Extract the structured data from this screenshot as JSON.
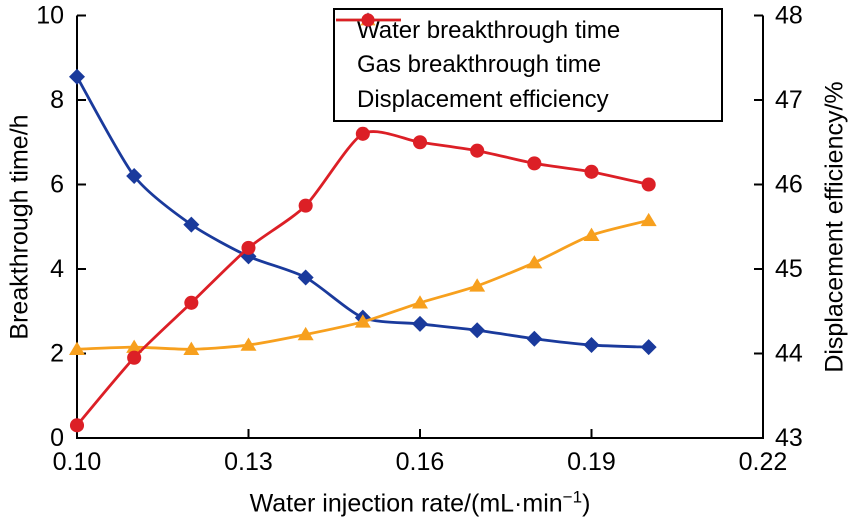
{
  "chart_data": {
    "type": "line",
    "title": "",
    "x": [
      0.1,
      0.11,
      0.12,
      0.13,
      0.14,
      0.15,
      0.16,
      0.17,
      0.18,
      0.19,
      0.2
    ],
    "xlim": [
      0.1,
      0.22
    ],
    "x_ticks": [
      "0.10",
      "0.13",
      "0.16",
      "0.19",
      "0.22"
    ],
    "xlabel_prefix": "Water injection rate/(mL·min",
    "xlabel_sup": "−1",
    "xlabel_suffix": ")",
    "left_axis": {
      "label": "Breakthrough time/h",
      "ticks": [
        "0",
        "2",
        "4",
        "6",
        "8",
        "10"
      ],
      "lim": [
        0,
        10
      ]
    },
    "right_axis": {
      "label": "Displacement efficiency/%",
      "ticks": [
        "43",
        "44",
        "45",
        "46",
        "47",
        "48"
      ],
      "lim": [
        43,
        48
      ]
    },
    "grid": false,
    "legend_position": "top-center-inside",
    "series": [
      {
        "name": "Water breakthrough time",
        "axis": "left",
        "marker": "diamond",
        "color": "#1a3a9c",
        "values": [
          8.55,
          6.2,
          5.05,
          4.3,
          3.8,
          2.85,
          2.7,
          2.55,
          2.35,
          2.2,
          2.15
        ]
      },
      {
        "name": "Gas breakthrough time",
        "axis": "left",
        "marker": "triangle",
        "color": "#f7a01e",
        "values": [
          2.1,
          2.15,
          2.1,
          2.2,
          2.45,
          2.75,
          3.2,
          3.6,
          4.15,
          4.8,
          5.15
        ]
      },
      {
        "name": "Displacement efficiency",
        "axis": "right",
        "marker": "circle",
        "color": "#dc1f26",
        "values": [
          43.15,
          43.95,
          44.6,
          45.25,
          45.75,
          46.6,
          46.5,
          46.4,
          46.25,
          46.15,
          46.0
        ]
      }
    ],
    "axis_color": "#000000",
    "background": "#ffffff"
  }
}
